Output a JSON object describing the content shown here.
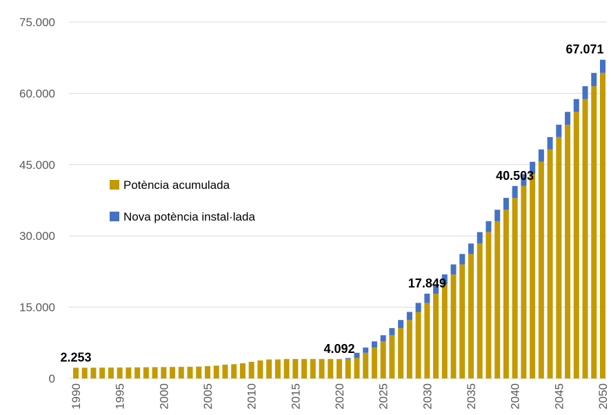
{
  "chart_data": {
    "type": "stacked_bar",
    "x": [
      1990,
      1991,
      1992,
      1993,
      1994,
      1995,
      1996,
      1997,
      1998,
      1999,
      2000,
      2001,
      2002,
      2003,
      2004,
      2005,
      2006,
      2007,
      2008,
      2009,
      2010,
      2011,
      2012,
      2013,
      2014,
      2015,
      2016,
      2017,
      2018,
      2019,
      2020,
      2021,
      2022,
      2023,
      2024,
      2025,
      2026,
      2027,
      2028,
      2029,
      2030,
      2031,
      2032,
      2033,
      2034,
      2035,
      2036,
      2037,
      2038,
      2039,
      2040,
      2041,
      2042,
      2043,
      2044,
      2045,
      2046,
      2047,
      2048,
      2049,
      2050
    ],
    "xlim": [
      1990,
      2050
    ],
    "xticks": [
      1990,
      1995,
      2000,
      2005,
      2010,
      2015,
      2020,
      2025,
      2030,
      2035,
      2040,
      2045,
      2050
    ],
    "ylim": [
      0,
      75000
    ],
    "yticks": [
      0,
      {
        "value": 15000,
        "label": "15.000"
      },
      {
        "value": 30000,
        "label": "30.000"
      },
      {
        "value": 45000,
        "label": "45.000"
      },
      {
        "value": 60000,
        "label": "60.000"
      },
      {
        "value": 75000,
        "label": "75.000"
      }
    ],
    "grid": true,
    "series": [
      {
        "name": "Potència acumulada",
        "color": "#c49a00",
        "values": [
          2253,
          2260,
          2270,
          2280,
          2290,
          2300,
          2320,
          2340,
          2360,
          2380,
          2400,
          2420,
          2440,
          2460,
          2500,
          2600,
          2700,
          2900,
          3000,
          3200,
          3500,
          3800,
          4000,
          4000,
          4100,
          4100,
          4100,
          4100,
          4100,
          4100,
          4092,
          4092,
          4300,
          5400,
          6500,
          7800,
          9100,
          10600,
          12300,
          14000,
          15900,
          17849,
          19800,
          21900,
          24000,
          26200,
          28400,
          30800,
          33100,
          35500,
          38000,
          40503,
          43000,
          45600,
          48200,
          50800,
          53400,
          56100,
          58800,
          61500,
          64300
        ]
      },
      {
        "name": "Nova potència instal·lada",
        "color": "#4472c4",
        "values": [
          0,
          0,
          0,
          0,
          0,
          0,
          0,
          0,
          0,
          0,
          0,
          0,
          0,
          0,
          0,
          0,
          0,
          0,
          0,
          0,
          0,
          0,
          0,
          0,
          0,
          0,
          0,
          0,
          0,
          0,
          0,
          208,
          1100,
          1100,
          1300,
          1300,
          1500,
          1700,
          1700,
          1900,
          1949,
          1951,
          2100,
          2100,
          2200,
          2200,
          2400,
          2300,
          2400,
          2500,
          2503,
          2497,
          2600,
          2600,
          2600,
          2600,
          2700,
          2700,
          2700,
          2800,
          2771
        ]
      }
    ],
    "annotations": [
      {
        "x": 1990,
        "text": "2.253"
      },
      {
        "x": 2020,
        "text": "4.092"
      },
      {
        "x": 2030,
        "text": "17.849"
      },
      {
        "x": 2040,
        "text": "40.503"
      },
      {
        "x": 2050,
        "text": "67.071"
      }
    ]
  }
}
